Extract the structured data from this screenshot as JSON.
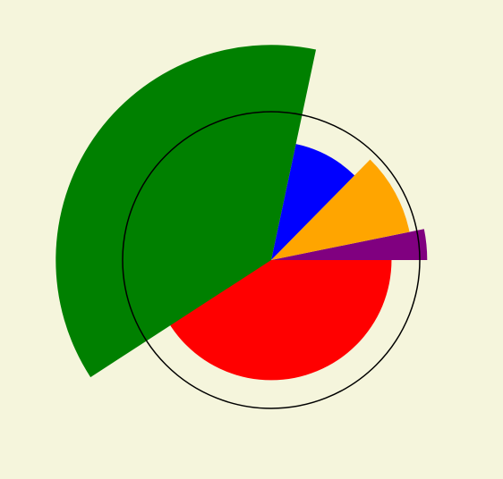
{
  "chart_data": {
    "type": "pie",
    "variant": "polar-area",
    "angle_start_deg": 0,
    "direction": "counterclockwise",
    "slices": [
      {
        "label": "red",
        "start_deg": 180,
        "end_deg": 360,
        "radius": 0.81,
        "color": "#ff0000"
      },
      {
        "label": "purple",
        "start_deg": 0,
        "end_deg": 11.5,
        "radius": 1.05,
        "color": "#800080"
      },
      {
        "label": "orange",
        "start_deg": 11.5,
        "end_deg": 45.5,
        "radius": 0.95,
        "color": "#ffa500"
      },
      {
        "label": "blue",
        "start_deg": 45.5,
        "end_deg": 78,
        "radius": 0.8,
        "color": "#0000ff"
      },
      {
        "label": "green",
        "start_deg": 78,
        "end_deg": 213,
        "radius": 1.45,
        "color": "#008000"
      }
    ],
    "reference_circle_radius": 1.0,
    "background": "#f5f5dc"
  }
}
